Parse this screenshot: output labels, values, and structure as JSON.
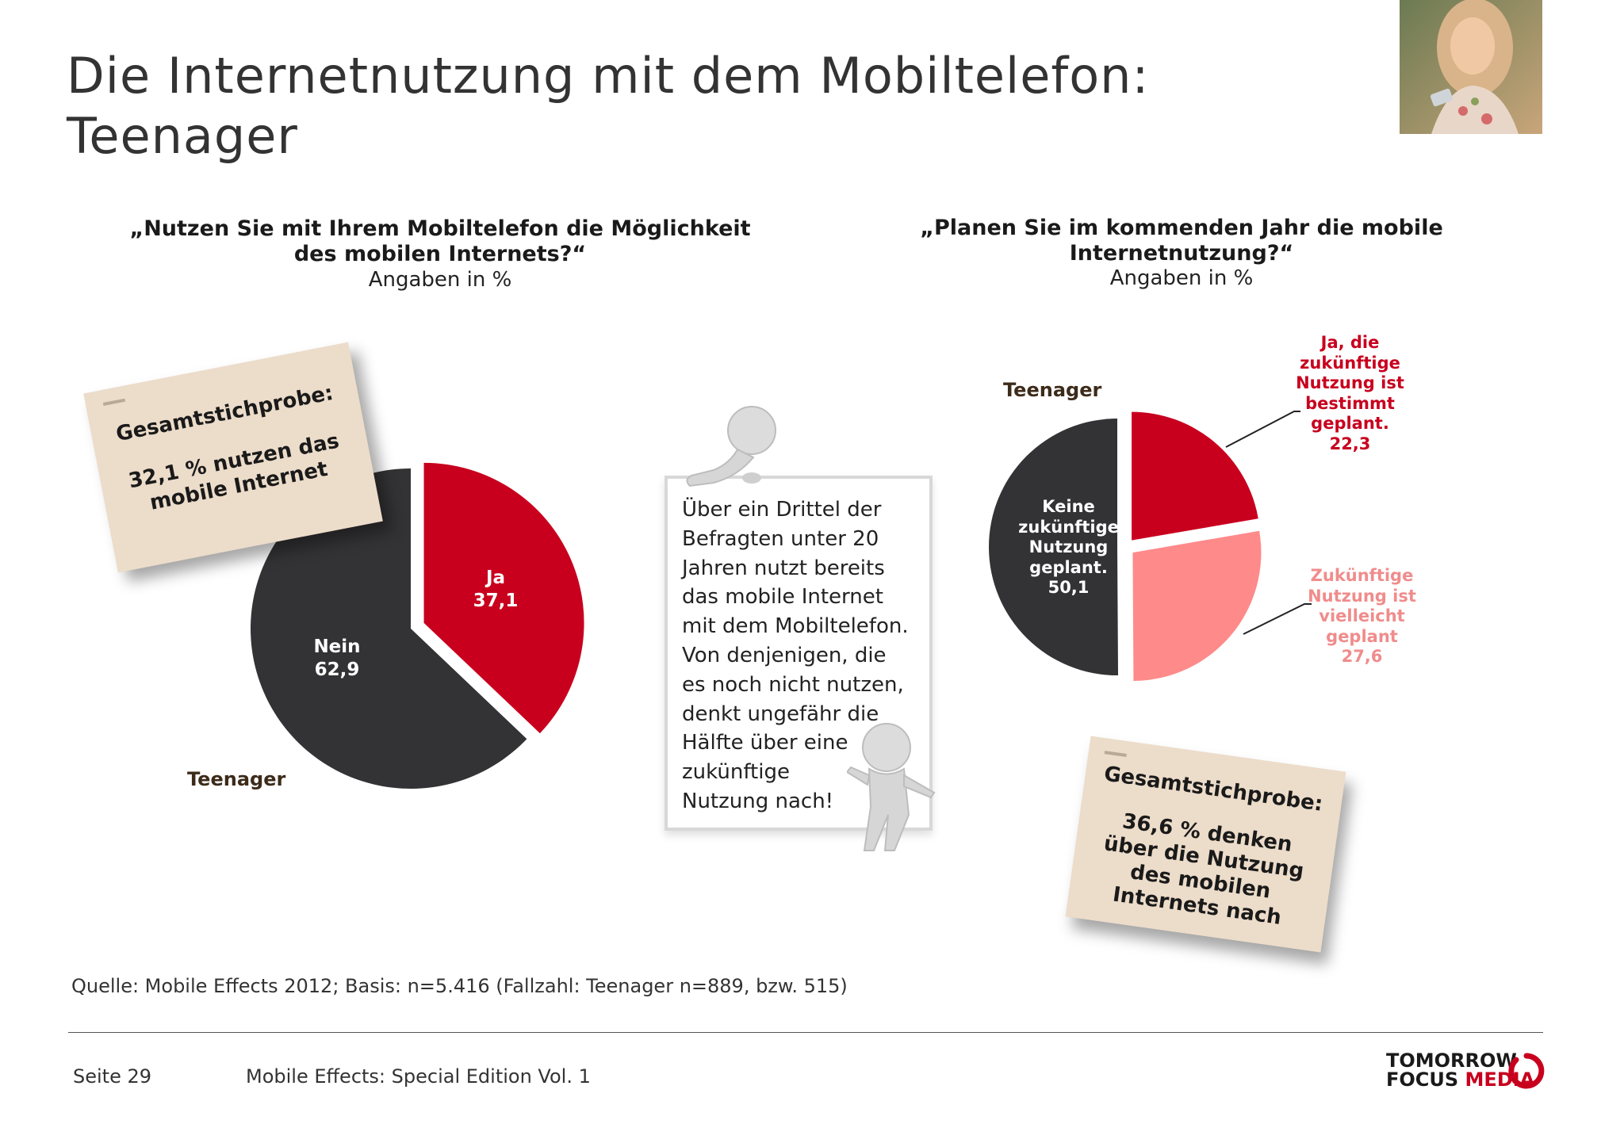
{
  "page": {
    "title_line1": "Die Internetnutzung mit dem Mobiltelefon:",
    "title_line2": "Teenager"
  },
  "left": {
    "question_line1": "„Nutzen Sie mit Ihrem Mobiltelefon die Möglichkeit",
    "question_line2": "des mobilen Internets?“",
    "unit": "Angaben in %",
    "series_label": "Teenager",
    "note": {
      "heading": "Gesamtstichprobe:",
      "line1": "32,1 % nutzen das",
      "line2": "mobile Internet"
    }
  },
  "right": {
    "question_line1": "„Planen Sie im kommenden Jahr die mobile",
    "question_line2": "Internetnutzung?“",
    "unit": "Angaben in %",
    "series_label": "Teenager",
    "note": {
      "heading": "Gesamtstichprobe:",
      "line1": "36,6 % denken",
      "line2": "über die Nutzung",
      "line3": "des mobilen",
      "line4": "Internets nach"
    }
  },
  "board": {
    "lines": [
      "Über ein Drittel der",
      "Befragten unter 20",
      "Jahren nutzt bereits",
      "das mobile Internet",
      "mit dem Mobiltelefon.",
      "Von denjenigen, die",
      "es noch nicht nutzen,",
      "denkt ungefähr die",
      "Hälfte über eine",
      "zukünftige",
      "Nutzung nach!"
    ]
  },
  "source": "Quelle: Mobile Effects 2012; Basis: n=5.416 (Fallzahl: Teenager n=889, bzw. 515)",
  "footer": {
    "page": "Seite 29",
    "publication": "Mobile Effects: Special Edition Vol. 1",
    "logo_line1": "TOMORROW",
    "logo_line2a": "FOCUS ",
    "logo_line2b": "MEDIA"
  },
  "colors": {
    "red": "#c8001e",
    "dark": "#333234",
    "pink": "#ff8a8a",
    "note_bg": "#ecdcca"
  },
  "chart_data": [
    {
      "type": "pie",
      "title": "„Nutzen Sie mit Ihrem Mobiltelefon die Möglichkeit des mobilen Internets?“",
      "subtitle": "Angaben in %",
      "series": [
        {
          "name": "Teenager",
          "values": [
            37.1,
            62.9
          ]
        }
      ],
      "slices": [
        {
          "label": "Ja",
          "value": 37.1,
          "value_text": "37,1",
          "color": "#c8001e",
          "exploded": true
        },
        {
          "label": "Nein",
          "value": 62.9,
          "value_text": "62,9",
          "color": "#333234",
          "exploded": false
        }
      ]
    },
    {
      "type": "pie",
      "title": "„Planen Sie im kommenden Jahr die mobile Internetnutzung?“",
      "subtitle": "Angaben in %",
      "series": [
        {
          "name": "Teenager",
          "values": [
            22.3,
            27.6,
            50.1
          ]
        }
      ],
      "slices": [
        {
          "label_lines": [
            "Ja, die",
            "zukünftige",
            "Nutzung ist",
            "bestimmt",
            "geplant."
          ],
          "value": 22.3,
          "value_text": "22,3",
          "color": "#c8001e"
        },
        {
          "label_lines": [
            "Zukünftige",
            "Nutzung ist",
            "vielleicht",
            "geplant"
          ],
          "value": 27.6,
          "value_text": "27,6",
          "color": "#ff8a8a"
        },
        {
          "label_lines": [
            "Keine",
            "zukünftige",
            "Nutzung",
            "geplant."
          ],
          "value": 50.1,
          "value_text": "50,1",
          "color": "#333234"
        }
      ]
    }
  ]
}
